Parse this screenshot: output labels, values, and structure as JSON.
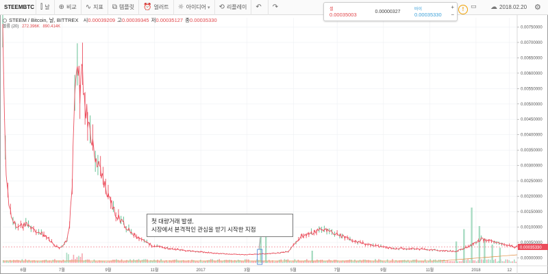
{
  "toolbar": {
    "symbol": "STEEMBTC",
    "interval": "날",
    "compare": "비교",
    "indicators": "지표",
    "templates": "템플릿",
    "alerts": "얼러트",
    "ideas": "아이디어",
    "replay": "리플레이",
    "icons": {
      "interval": "candles-icon",
      "compare": "plus-circle-icon",
      "indicators": "wave-icon",
      "templates": "template-icon",
      "alerts": "alarm-icon",
      "ideas": "lightbulb-icon",
      "replay": "replay-icon",
      "undo": "undo-icon",
      "redo": "redo-icon"
    }
  },
  "trade": {
    "sell_label": "셀",
    "sell_value": "0.00035003",
    "spread": "0.00000327",
    "buy_label": "바이",
    "buy_value": "0.00035330",
    "plus": "+",
    "minus": "−"
  },
  "header_right": {
    "date": "2018.02.20",
    "info": "!"
  },
  "legend": {
    "title": "STEEM / Bitcoin, 날, BITTREX",
    "open_label": "시",
    "open": "0.00039209",
    "high_label": "고",
    "high": "0.00039345",
    "low_label": "저",
    "low": "0.00035127",
    "close_label": "종",
    "close": "0.00035330",
    "volume_label": "볼륨 (20)",
    "volume_value": "272.396K",
    "volume_ma": "890.414K"
  },
  "annotation": {
    "line1": "첫 대량거래 발생,",
    "line2": "시장에서 본격적인 관심을 받기 시작한 지점"
  },
  "colors": {
    "up": "#53b987",
    "down": "#eb4d5c",
    "price_line": "#eb4d5c",
    "volume_up": "#a9dcc3",
    "volume_down": "#f5a6ae"
  },
  "chart_data": {
    "type": "candlestick",
    "x_labels": [
      "6월",
      "7월",
      "9월",
      "11월",
      "2017",
      "3월",
      "5월",
      "7월",
      "9월",
      "11월",
      "2018",
      "12"
    ],
    "y_ticks": [
      "0.00750000",
      "0.00700000",
      "0.00650000",
      "0.00600000",
      "0.00550000",
      "0.00500000",
      "0.00450000",
      "0.00400000",
      "0.00350000",
      "0.00300000",
      "0.00250000",
      "0.00200000",
      "0.00150000",
      "0.00100000",
      "0.00050000",
      "0.00000000"
    ],
    "y_tick_values": [
      0.0075,
      0.007,
      0.0065,
      0.006,
      0.0055,
      0.005,
      0.0045,
      0.004,
      0.0035,
      0.003,
      0.0025,
      0.002,
      0.0015,
      0.001,
      0.0005,
      0
    ],
    "ylim": [
      -0.00017,
      0.0078
    ],
    "last_price_label": "0.00035330",
    "last_price": 0.0003533,
    "price_path": [
      [
        0.0,
        0.0074
      ],
      [
        0.006,
        0.003
      ],
      [
        0.012,
        0.0016
      ],
      [
        0.02,
        0.0012
      ],
      [
        0.03,
        0.001
      ],
      [
        0.045,
        0.0011
      ],
      [
        0.06,
        0.0009
      ],
      [
        0.075,
        0.0008
      ],
      [
        0.09,
        0.0006
      ],
      [
        0.1,
        0.0004
      ],
      [
        0.11,
        0.0003
      ],
      [
        0.118,
        0.0004
      ],
      [
        0.125,
        0.0006
      ],
      [
        0.13,
        0.0011
      ],
      [
        0.135,
        0.0025
      ],
      [
        0.138,
        0.004
      ],
      [
        0.142,
        0.006
      ],
      [
        0.146,
        0.0066
      ],
      [
        0.15,
        0.0055
      ],
      [
        0.155,
        0.006
      ],
      [
        0.16,
        0.005
      ],
      [
        0.165,
        0.0045
      ],
      [
        0.172,
        0.0038
      ],
      [
        0.18,
        0.0033
      ],
      [
        0.19,
        0.0028
      ],
      [
        0.2,
        0.0023
      ],
      [
        0.21,
        0.0018
      ],
      [
        0.22,
        0.0014
      ],
      [
        0.235,
        0.0011
      ],
      [
        0.25,
        0.0008
      ],
      [
        0.27,
        0.0006
      ],
      [
        0.29,
        0.0004
      ],
      [
        0.32,
        0.0003
      ],
      [
        0.35,
        0.00025
      ],
      [
        0.38,
        0.0002
      ],
      [
        0.41,
        0.00015
      ],
      [
        0.44,
        0.00012
      ],
      [
        0.47,
        0.0001
      ],
      [
        0.5,
        0.00012
      ],
      [
        0.53,
        0.00015
      ],
      [
        0.555,
        0.0002
      ],
      [
        0.57,
        0.0005
      ],
      [
        0.58,
        0.0007
      ],
      [
        0.6,
        0.0008
      ],
      [
        0.615,
        0.0009
      ],
      [
        0.63,
        0.0009
      ],
      [
        0.66,
        0.0007
      ],
      [
        0.69,
        0.0005
      ],
      [
        0.72,
        0.0004
      ],
      [
        0.76,
        0.0003
      ],
      [
        0.8,
        0.0003
      ],
      [
        0.84,
        0.00025
      ],
      [
        0.88,
        0.0002
      ],
      [
        0.91,
        0.0004
      ],
      [
        0.93,
        0.0006
      ],
      [
        0.96,
        0.0005
      ],
      [
        0.98,
        0.0004
      ],
      [
        1.0,
        0.00035
      ]
    ],
    "volume_spikes": [
      [
        0.5,
        0.7
      ],
      [
        0.51,
        0.45
      ],
      [
        0.6,
        0.2
      ],
      [
        0.88,
        0.35
      ],
      [
        0.895,
        0.55
      ],
      [
        0.91,
        0.9
      ],
      [
        0.925,
        0.6
      ],
      [
        0.935,
        0.4
      ],
      [
        0.95,
        0.3
      ],
      [
        0.965,
        0.25
      ]
    ]
  }
}
